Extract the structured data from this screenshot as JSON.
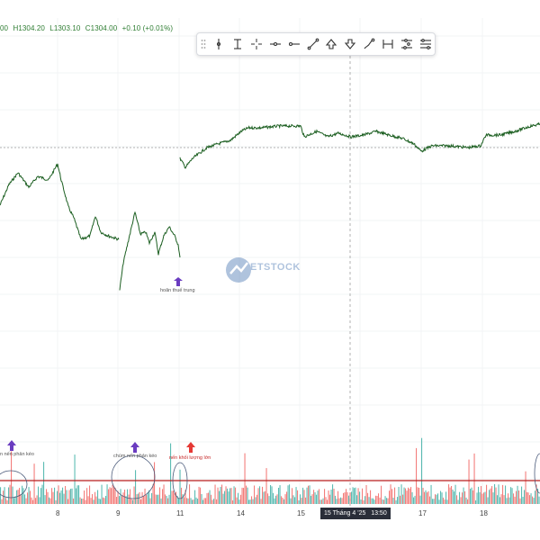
{
  "legend": {
    "o": "00",
    "h": "H1304.20",
    "l": "L1303.10",
    "c": "C1304.00",
    "change": "+0.10 (+0.01%)"
  },
  "toolbar": {
    "tools": [
      "vertical-line-icon",
      "horizontal-ray-icon",
      "crosshair-icon",
      "horizontal-line-icon",
      "horizontal-segment-icon",
      "trend-line-icon",
      "arrow-up-marker-icon",
      "arrow-down-marker-icon",
      "brush-icon",
      "price-range-icon",
      "date-range-icon",
      "date-price-range-icon"
    ]
  },
  "annotations": {
    "hoan_thue": "hoãn thuế trung",
    "nen_phan_keo_1": "n nến phản kéo",
    "chum_nen_phan_keo": "chùm nến phản kéo",
    "nen_khoi_luong_lon": "nến khối lượng lớn"
  },
  "watermark": "ETSTOCK",
  "x_axis": {
    "labels": [
      "8",
      "9",
      "11",
      "14",
      "15",
      "17",
      "18"
    ]
  },
  "crosshair": {
    "date_label": "15 Tháng 4 '25",
    "time_label": "13:50"
  },
  "colors": {
    "up": "#26a69a",
    "down": "#ef5350",
    "line": "#1b5e20",
    "marker_up": "#6a3cc0",
    "marker_red": "#e53935",
    "threshold": "#b71c1c"
  }
}
